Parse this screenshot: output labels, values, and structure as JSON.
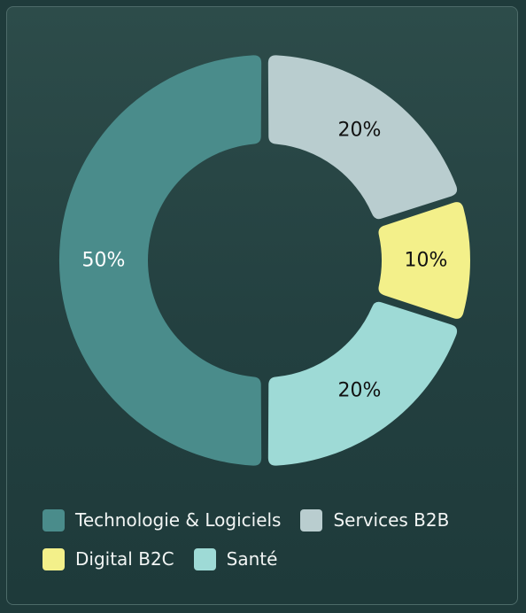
{
  "chart_data": {
    "type": "pie",
    "variant": "donut",
    "categories": [
      "Technologie & Logiciels",
      "Services B2B",
      "Digital B2C",
      "Santé"
    ],
    "values": [
      50,
      20,
      10,
      20
    ],
    "labels": [
      "50%",
      "20%",
      "10%",
      "20%"
    ],
    "colors": [
      "#4a8c8b",
      "#b9cdcf",
      "#f3f08a",
      "#9edad6"
    ],
    "label_colors": [
      "#ffffff",
      "#111111",
      "#111111",
      "#111111"
    ],
    "legend_position": "bottom",
    "title": ""
  },
  "legend": {
    "items": [
      {
        "label": "Technologie & Logiciels",
        "color": "#4a8c8b"
      },
      {
        "label": "Services B2B",
        "color": "#b9cdcf"
      },
      {
        "label": "Digital B2C",
        "color": "#f3f08a"
      },
      {
        "label": "Santé",
        "color": "#9edad6"
      }
    ]
  }
}
